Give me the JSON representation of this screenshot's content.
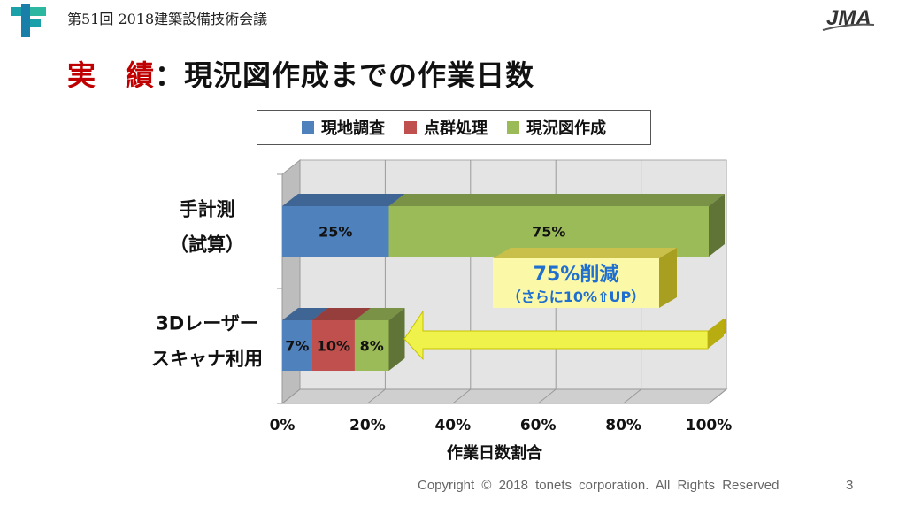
{
  "header": {
    "conference": "第51回 2018建築設備技術会議",
    "logo_text": "JMA"
  },
  "slide_title": {
    "prefix": "実　績",
    "rest": "：現況図作成までの作業日数"
  },
  "colors": {
    "survey": "#4f81bd",
    "pointcloud": "#c0504d",
    "drawing": "#9bbb59",
    "accent": "#c00000"
  },
  "chart_data": {
    "type": "bar",
    "orientation": "horizontal",
    "stacked": true,
    "categories": [
      [
        "手計測",
        "（試算）"
      ],
      [
        "3Dレーザー",
        "スキャナ利用"
      ]
    ],
    "series": [
      {
        "name": "現地調査",
        "values": [
          25,
          7
        ],
        "labels": [
          "25%",
          "7%"
        ]
      },
      {
        "name": "点群処理",
        "values": [
          0,
          10
        ],
        "labels": [
          "",
          "10%"
        ]
      },
      {
        "name": "現況図作成",
        "values": [
          75,
          8
        ],
        "labels": [
          "75%",
          "8%"
        ]
      }
    ],
    "xlabel": "作業日数割合",
    "xticks": [
      "0%",
      "20%",
      "40%",
      "60%",
      "80%",
      "100%"
    ],
    "xlim": [
      0,
      100
    ],
    "legend": "top",
    "grid": true
  },
  "callout": {
    "headline": "75%削減",
    "sub": "（さらに10%⇧UP）"
  },
  "footer": {
    "copyright": "Copyright ©  2018  tonets  corporation.  All  Rights  Reserved",
    "page": "3"
  }
}
